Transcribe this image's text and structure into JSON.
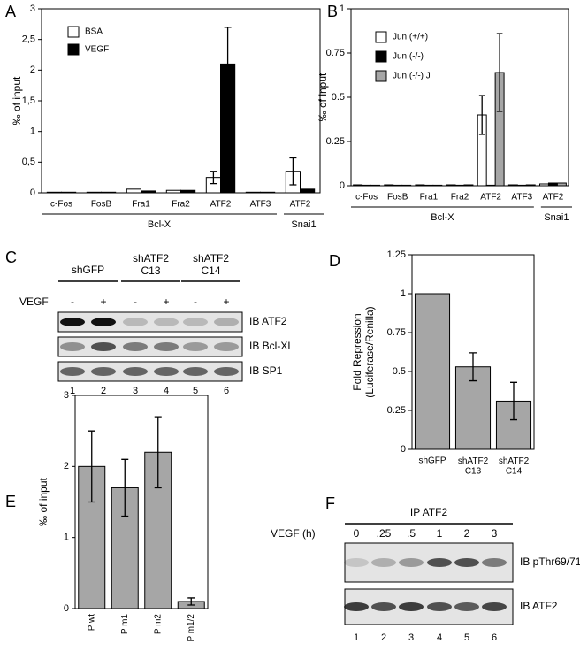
{
  "chart_data": [
    {
      "type": "bar",
      "panel": "A",
      "ylabel": "‰ of input",
      "categories": [
        "c-Fos",
        "FosB",
        "Fra1",
        "Fra2",
        "ATF2",
        "ATF3",
        "ATF2"
      ],
      "category_groups": [
        "Bcl-X",
        "Bcl-X",
        "Bcl-X",
        "Bcl-X",
        "Bcl-X",
        "Bcl-X",
        "Snai1"
      ],
      "series": [
        {
          "name": "BSA",
          "color": "#ffffff",
          "values": [
            0.01,
            0.01,
            0.06,
            0.04,
            0.25,
            0.01,
            0.35
          ],
          "errors": [
            null,
            null,
            null,
            null,
            0.1,
            null,
            0.22
          ]
        },
        {
          "name": "VEGF",
          "color": "#000000",
          "values": [
            0.01,
            0.01,
            0.03,
            0.04,
            2.1,
            0.01,
            0.06
          ],
          "errors": [
            null,
            null,
            null,
            null,
            0.6,
            null,
            null
          ]
        }
      ],
      "ylim": [
        0,
        3
      ],
      "yticks": [
        0,
        {
          "value": 0.5,
          "label": "0,5"
        },
        1,
        {
          "value": 1.5,
          "label": "1,5"
        },
        2,
        {
          "value": 2.5,
          "label": "2,5"
        },
        3
      ],
      "legend": "upper left"
    },
    {
      "type": "bar",
      "panel": "B",
      "ylabel": "‰ of input",
      "categories": [
        "c-Fos",
        "FosB",
        "Fra1",
        "Fra2",
        "ATF2",
        "ATF3",
        "ATF2"
      ],
      "category_groups": [
        "Bcl-X",
        "Bcl-X",
        "Bcl-X",
        "Bcl-X",
        "Bcl-X",
        "Bcl-X",
        "Snai1"
      ],
      "series": [
        {
          "name": "Jun (+/+)",
          "color": "#ffffff",
          "values": [
            0.005,
            0.005,
            0.005,
            0.005,
            0.4,
            0.005,
            0.01
          ],
          "errors": [
            null,
            null,
            null,
            null,
            0.11,
            null,
            null
          ]
        },
        {
          "name": "Jun (-/-)",
          "color": "#000000",
          "values": [
            0.003,
            0.003,
            0.003,
            0.003,
            0.003,
            0.003,
            0.015
          ],
          "errors": [
            null,
            null,
            null,
            null,
            null,
            null,
            null
          ]
        },
        {
          "name": "Jun (-/-) J",
          "color": "#a6a6a6",
          "values": [
            0.003,
            0.003,
            0.003,
            0.005,
            0.64,
            0.005,
            0.015
          ],
          "errors": [
            null,
            null,
            null,
            null,
            0.22,
            null,
            null
          ]
        }
      ],
      "ylim": [
        0,
        1
      ],
      "yticks": [
        0,
        0.25,
        0.5,
        0.75,
        1
      ],
      "legend": "upper left"
    },
    {
      "type": "bar",
      "panel": "D",
      "ylabel": "Fold Repression\n(Luciferase/Renilla)",
      "categories": [
        "shGFP",
        "shATF2\nC13",
        "shATF2\nC14"
      ],
      "values": [
        1,
        0.53,
        0.31
      ],
      "errors": [
        null,
        0.09,
        0.12
      ],
      "color": "#a6a6a6",
      "ylim": [
        0,
        1.25
      ],
      "yticks": [
        0,
        0.25,
        0.5,
        0.75,
        1,
        1.25
      ]
    },
    {
      "type": "bar",
      "panel": "E",
      "ylabel": "‰ of input",
      "categories": [
        "P wt",
        "P m1",
        "P m2",
        "P m1/2"
      ],
      "values": [
        2.0,
        1.7,
        2.2,
        0.1
      ],
      "errors": [
        0.5,
        0.4,
        0.5,
        0.05
      ],
      "color": "#a6a6a6",
      "ylim": [
        0,
        3
      ],
      "yticks": [
        0,
        1,
        2,
        3
      ],
      "xtick_rotation": 90
    }
  ],
  "blots": [
    {
      "panel": "C",
      "groups": [
        "shGFP",
        "shATF2\nC13",
        "shATF2\nC14"
      ],
      "treatment_label": "VEGF",
      "treatments": [
        "-",
        "+",
        "-",
        "+",
        "-",
        "+"
      ],
      "rows": [
        "IB ATF2",
        "IB Bcl-XL",
        "IB SP1"
      ],
      "lanes": [
        "1",
        "2",
        "3",
        "4",
        "5",
        "6"
      ]
    },
    {
      "panel": "F",
      "header": "IP ATF2",
      "treatment_label": "VEGF (h)",
      "treatments": [
        "0",
        ".25",
        ".5",
        "1",
        "2",
        "3"
      ],
      "rows": [
        "IB pThr69/71",
        "IB ATF2"
      ],
      "lanes": [
        "1",
        "2",
        "3",
        "4",
        "5",
        "6"
      ]
    }
  ]
}
